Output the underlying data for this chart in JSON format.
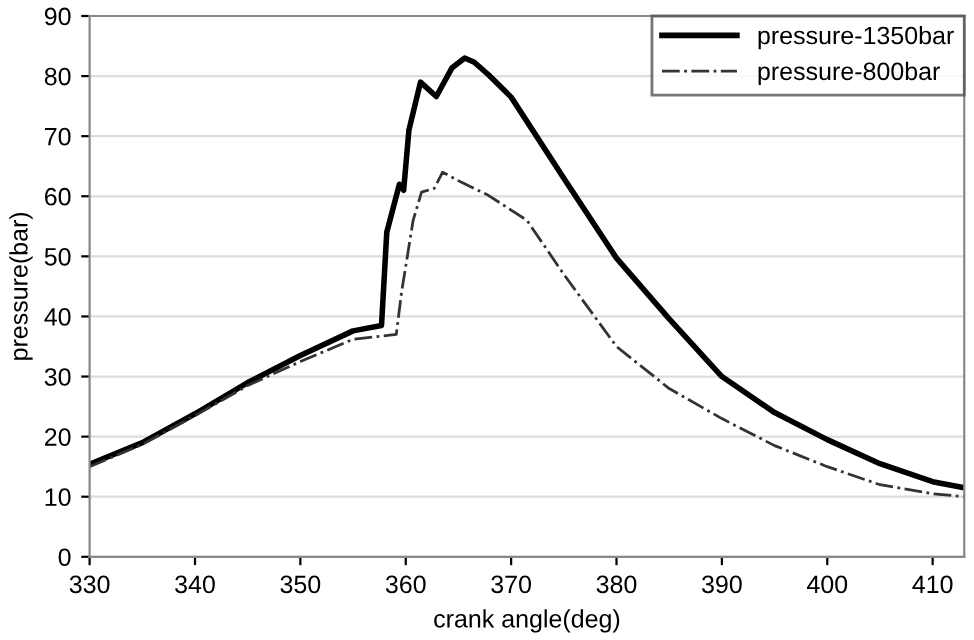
{
  "chart_data": {
    "type": "line",
    "xlabel": "crank angle(deg)",
    "ylabel": "pressure(bar)",
    "xlim": [
      330,
      413
    ],
    "xticks": [
      330,
      340,
      350,
      360,
      370,
      380,
      390,
      400,
      410
    ],
    "ylim": [
      0,
      90
    ],
    "yticks": [
      0,
      10,
      20,
      30,
      40,
      50,
      60,
      70,
      80,
      90
    ],
    "grid": "y",
    "legend": "top right",
    "series": [
      {
        "name": "pressure-1350bar",
        "color": "#000000",
        "line_style": "solid",
        "x": [
          330,
          335,
          340,
          345,
          350,
          355,
          357.7,
          358.2,
          359.4,
          359.8,
          360.3,
          361.4,
          362.9,
          364.4,
          365.6,
          366.5,
          367.8,
          370,
          375,
          380,
          385,
          390,
          395,
          400,
          405,
          410,
          413
        ],
        "values": [
          15.4,
          19,
          23.8,
          29,
          33.5,
          37.6,
          38.5,
          54,
          62,
          61,
          71,
          79,
          76.6,
          81.4,
          83,
          82.3,
          80.3,
          76.5,
          63,
          49.7,
          39.6,
          30,
          24,
          19.5,
          15.5,
          12.5,
          11.5
        ]
      },
      {
        "name": "pressure-800bar",
        "color": "#333333",
        "line_style": "dashdot",
        "x": [
          330,
          335,
          340,
          345,
          350,
          355,
          359.1,
          359.6,
          360.7,
          361.5,
          362.7,
          363.5,
          365.2,
          367.8,
          371.5,
          375,
          380,
          385,
          390,
          395,
          400,
          405,
          410,
          413
        ],
        "values": [
          15,
          18.7,
          23.5,
          28.5,
          32.5,
          36.2,
          37,
          44,
          56,
          60.7,
          61.3,
          64,
          62.4,
          60.2,
          56,
          47,
          35,
          28,
          23,
          18.5,
          15,
          12,
          10.5,
          10
        ]
      }
    ]
  }
}
